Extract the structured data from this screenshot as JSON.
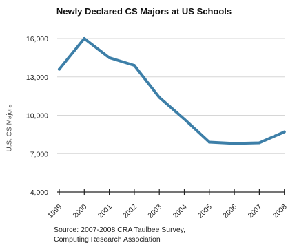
{
  "chart_data": {
    "type": "line",
    "title": "Newly Declared CS Majors at US Schools",
    "ylabel": "U.S. CS Majors",
    "xlabel": "",
    "categories": [
      "1999",
      "2000",
      "2001",
      "2002",
      "2003",
      "2004",
      "2005",
      "2006",
      "2007",
      "2008"
    ],
    "series": [
      {
        "values": [
          13600,
          16000,
          14500,
          13900,
          11400,
          9700,
          7900,
          7800,
          7850,
          8700
        ]
      }
    ],
    "ylim": [
      4000,
      16000
    ],
    "yticks": [
      "4,000",
      "7,000",
      "10,000",
      "13,000",
      "16,000"
    ],
    "ytick_values": [
      4000,
      7000,
      10000,
      13000,
      16000
    ],
    "grid": true,
    "line_color": "#3d7fa8",
    "grid_color": "#d6d6d6",
    "source_lines": [
      "Source: 2007-2008 CRA Taulbee Survey,",
      "Computing Research Association"
    ]
  }
}
